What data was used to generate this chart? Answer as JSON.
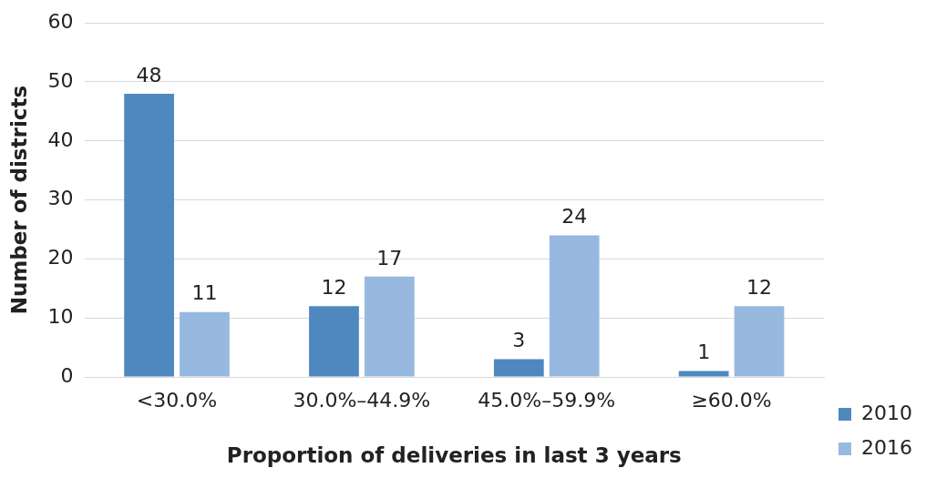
{
  "chart_data": {
    "type": "bar",
    "xlabel": "Proportion of deliveries in last 3 years",
    "ylabel": "Number of districts",
    "categories": [
      "<30.0%",
      "30.0%–44.9%",
      "45.0%–59.9%",
      "≥60.0%"
    ],
    "series": [
      {
        "name": "2010",
        "color": "#4f88bf",
        "values": [
          48,
          12,
          3,
          1
        ]
      },
      {
        "name": "2016",
        "color": "#97b9e0",
        "values": [
          11,
          17,
          24,
          12
        ]
      }
    ],
    "ylim": [
      0,
      60
    ],
    "yticks": [
      0,
      10,
      20,
      30,
      40,
      50,
      60
    ],
    "grid": "y",
    "legend": "bottom right",
    "data_labels": true
  }
}
